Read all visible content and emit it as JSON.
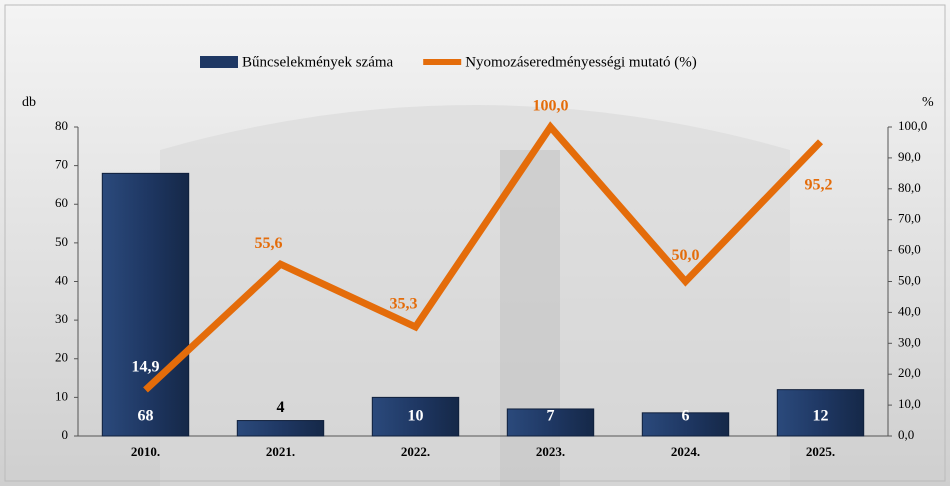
{
  "chart_data": {
    "type": "bar-line",
    "categories": [
      "2010.",
      "2021.",
      "2022.",
      "2023.",
      "2024.",
      "2025."
    ],
    "y_label": "db",
    "y2_label": "%",
    "series": [
      {
        "name": "Bűncselekmények száma",
        "type": "bar",
        "color": "#1f3864",
        "values": [
          68,
          4,
          10,
          7,
          6,
          12
        ]
      },
      {
        "name": "Nyomozáseredményességi mutató (%)",
        "type": "line",
        "axis": "y2",
        "color": "#e46c0a",
        "values": [
          14.9,
          55.6,
          35.3,
          100,
          50,
          95.2
        ],
        "value_labels": [
          "14,9",
          "55,6",
          "35,3",
          "100,0",
          "50,0",
          "95,2"
        ]
      }
    ],
    "ylim": [
      0,
      80
    ],
    "yticks": [
      0,
      10,
      20,
      30,
      40,
      50,
      60,
      70,
      80
    ],
    "y2lim": [
      0,
      100
    ],
    "y2ticks": [
      {
        "value": 0,
        "label": "0,0"
      },
      {
        "value": 10,
        "label": "10,0"
      },
      {
        "value": 20,
        "label": "20,0"
      },
      {
        "value": 30,
        "label": "30,0"
      },
      {
        "value": 40,
        "label": "40,0"
      },
      {
        "value": 50,
        "label": "50,0"
      },
      {
        "value": 60,
        "label": "60,0"
      },
      {
        "value": 70,
        "label": "70,0"
      },
      {
        "value": 80,
        "label": "80,0"
      },
      {
        "value": 90,
        "label": "90,0"
      },
      {
        "value": 100,
        "label": "100,0"
      }
    ],
    "legend": "top"
  }
}
